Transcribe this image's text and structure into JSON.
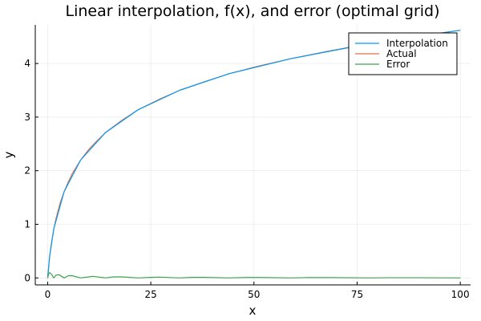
{
  "chart_data": {
    "type": "line",
    "title": "Linear interpolation, f(x), and error (optimal grid)",
    "xlabel": "x",
    "ylabel": "y",
    "xlim": [
      -3,
      102.5
    ],
    "ylim": [
      -0.13,
      4.72
    ],
    "xticks": [
      0,
      25,
      50,
      75,
      100
    ],
    "yticks": [
      0,
      1,
      2,
      3,
      4
    ],
    "grid": true,
    "legend_position": "top-right",
    "series": [
      {
        "name": "Interpolation",
        "color": "#009af9",
        "x": [
          0,
          0.5,
          1.5,
          4,
          8,
          14,
          22,
          32,
          44,
          59,
          78,
          100
        ],
        "y": [
          0,
          0.41,
          0.92,
          1.61,
          2.2,
          2.71,
          3.14,
          3.5,
          3.81,
          4.09,
          4.37,
          4.62
        ]
      },
      {
        "name": "Actual",
        "color": "#e26f46",
        "x": [
          0,
          0.25,
          0.5,
          1,
          1.5,
          2,
          3,
          4,
          5,
          6,
          8,
          10,
          12,
          14,
          18,
          22,
          27,
          32,
          38,
          44,
          51,
          59,
          68,
          78,
          89,
          100
        ],
        "y": [
          0,
          0.22,
          0.41,
          0.69,
          0.92,
          1.1,
          1.39,
          1.61,
          1.79,
          1.95,
          2.2,
          2.4,
          2.56,
          2.71,
          2.94,
          3.14,
          3.33,
          3.5,
          3.66,
          3.81,
          3.95,
          4.09,
          4.23,
          4.37,
          4.5,
          4.62
        ]
      },
      {
        "name": "Error",
        "color": "#3da44d",
        "x": [
          0,
          0.25,
          0.5,
          1,
          1.5,
          2,
          2.75,
          4,
          5,
          6,
          8,
          10,
          11,
          14,
          16,
          18,
          22,
          25,
          27,
          32,
          35,
          38,
          44,
          48,
          51,
          59,
          63,
          68,
          78,
          83,
          89,
          100
        ],
        "y": [
          0,
          0.08,
          0.1,
          0.06,
          0.0,
          0.05,
          0.06,
          0.0,
          0.04,
          0.04,
          0.0,
          0.02,
          0.03,
          0.0,
          0.02,
          0.02,
          0.0,
          0.01,
          0.015,
          0.0,
          0.01,
          0.01,
          0.0,
          0.008,
          0.008,
          0.0,
          0.006,
          0.006,
          0.0,
          0.004,
          0.004,
          0.0
        ]
      }
    ]
  }
}
